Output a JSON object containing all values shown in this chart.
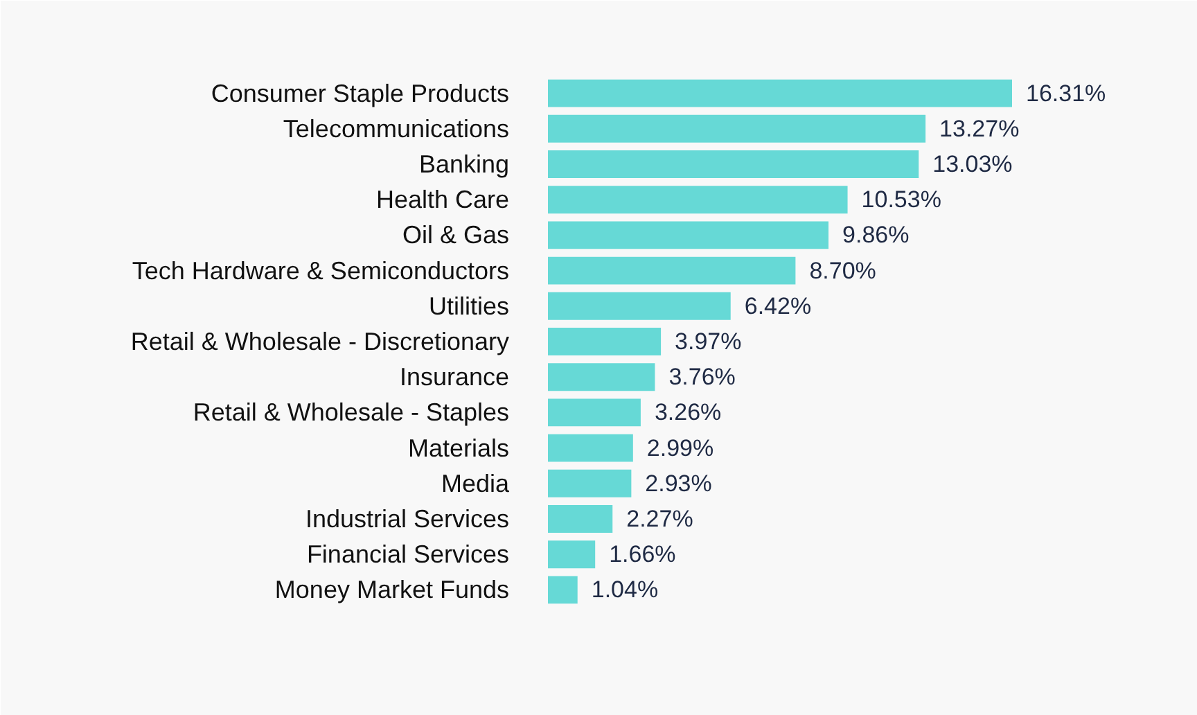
{
  "chart_data": {
    "type": "bar",
    "orientation": "horizontal",
    "categories": [
      "Consumer Staple Products",
      "Telecommunications",
      "Banking",
      "Health Care",
      "Oil & Gas",
      "Tech Hardware & Semiconductors",
      "Utilities",
      "Retail & Wholesale - Discretionary",
      "Insurance",
      "Retail & Wholesale - Staples",
      "Materials",
      "Media",
      "Industrial Services",
      "Financial Services",
      "Money Market Funds"
    ],
    "values": [
      16.31,
      13.27,
      13.03,
      10.53,
      9.86,
      8.7,
      6.42,
      3.97,
      3.76,
      3.26,
      2.99,
      2.93,
      2.27,
      1.66,
      1.04
    ],
    "value_labels": [
      "16.31%",
      "13.27%",
      "13.03%",
      "10.53%",
      "9.86%",
      "8.70%",
      "6.42%",
      "3.97%",
      "3.76%",
      "3.26%",
      "2.99%",
      "2.93%",
      "2.27%",
      "1.66%",
      "1.04%"
    ],
    "color": "#66d9d6",
    "grid": false
  }
}
